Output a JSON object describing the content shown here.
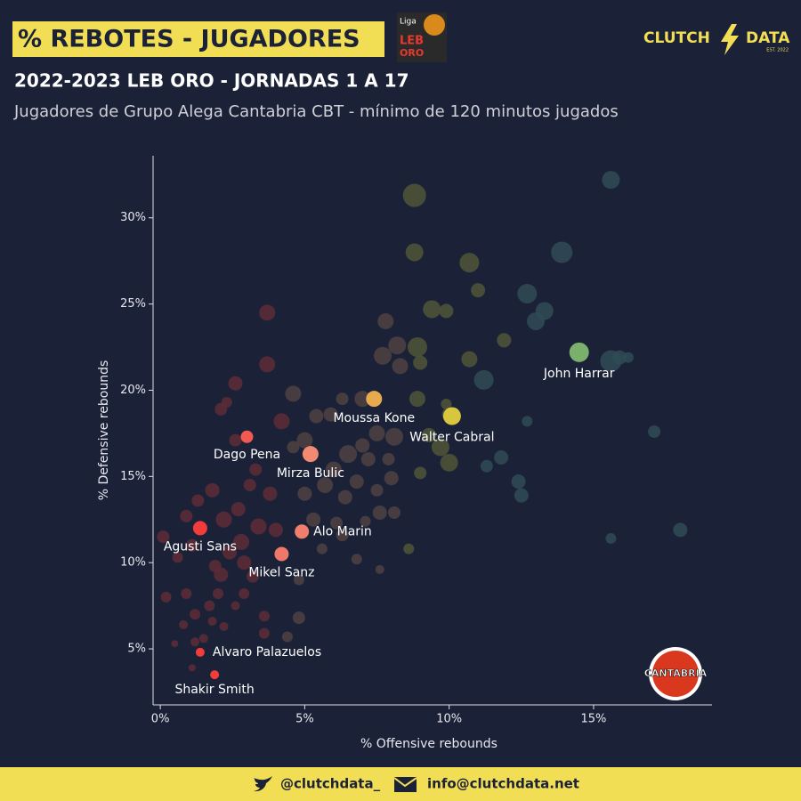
{
  "header": {
    "title": "% REBOTES - JUGADORES",
    "league_logo": [
      "Liga",
      "LEB",
      "ORO"
    ],
    "brand": [
      "CLUTCH",
      "DATA"
    ],
    "brand_est": "EST. 2022",
    "subtitle": "2022-2023 LEB ORO - JORNADAS 1 A 17",
    "description": "Jugadores de Grupo Alega Cantabria CBT - mínimo de 120 minutos jugados"
  },
  "team_logo": "CANTABRIA",
  "footer": {
    "twitter": "@clutchdata_",
    "email": "info@clutchdata.net"
  },
  "chart_data": {
    "type": "scatter",
    "x_label": "% Offensive rebounds",
    "y_label": "% Defensive rebounds",
    "xlim": [
      -0.25,
      19.1
    ],
    "ylim": [
      1.75,
      33.6
    ],
    "xticks": [
      {
        "value": 0,
        "label": "0%"
      },
      {
        "value": 5,
        "label": "5%"
      },
      {
        "value": 10,
        "label": "10%"
      },
      {
        "value": 15,
        "label": "15%"
      }
    ],
    "yticks": [
      {
        "value": 5,
        "label": "5%"
      },
      {
        "value": 10,
        "label": "10%"
      },
      {
        "value": 15,
        "label": "15%"
      },
      {
        "value": 20,
        "label": "20%"
      },
      {
        "value": 25,
        "label": "25%"
      },
      {
        "value": 30,
        "label": "30%"
      }
    ],
    "series": [
      {
        "color": "#2f4b56",
        "x": [
          15.6,
          13.9,
          12.7,
          13.3,
          13.0,
          15.6,
          15.9,
          16.2,
          17.1,
          18.0,
          15.6,
          12.4,
          12.5,
          11.8,
          11.3,
          12.7,
          11.2
        ],
        "y": [
          32.2,
          28.0,
          25.6,
          24.6,
          24.0,
          21.7,
          21.9,
          21.9,
          17.6,
          11.9,
          11.4,
          14.7,
          13.9,
          16.1,
          15.6,
          18.2,
          20.6
        ],
        "sizes": [
          10,
          12,
          11,
          10,
          10,
          12,
          8,
          6,
          7,
          8,
          6,
          8,
          8,
          8,
          7,
          6,
          11
        ]
      },
      {
        "color": "#4f5537",
        "x": [
          8.8,
          8.8,
          10.7,
          11.0,
          9.4,
          9.9,
          11.9,
          10.7,
          8.9,
          9.0,
          8.9,
          9.3,
          10.0,
          9.7,
          10.0,
          9.0,
          8.6,
          9.9
        ],
        "y": [
          31.3,
          28.0,
          27.4,
          25.8,
          24.7,
          24.6,
          22.9,
          21.8,
          22.5,
          21.6,
          19.5,
          17.4,
          18.6,
          16.7,
          15.8,
          15.2,
          10.8,
          19.2
        ],
        "sizes": [
          13,
          10,
          11,
          8,
          10,
          8,
          8,
          9,
          11,
          8,
          9,
          8,
          8,
          10,
          10,
          7,
          6,
          6
        ]
      },
      {
        "color": "#4f4142",
        "x": [
          7.8,
          8.2,
          7.7,
          8.3,
          6.3,
          7.0,
          5.9,
          5.4,
          7.5,
          8.1,
          7.0,
          7.2,
          6.5,
          6.8,
          7.5,
          8.0,
          7.9,
          7.1,
          6.1,
          7.6,
          8.1,
          6.8,
          7.6,
          5.6,
          6.4,
          5.7,
          6.0,
          6.3,
          5.0,
          4.6,
          5.0,
          4.6,
          5.3,
          4.8,
          4.4,
          4.8
        ],
        "y": [
          24.0,
          22.6,
          22.0,
          21.4,
          19.5,
          19.5,
          18.6,
          18.5,
          17.5,
          17.3,
          16.8,
          16.0,
          16.3,
          14.7,
          14.2,
          14.9,
          16.0,
          12.4,
          12.3,
          12.9,
          12.9,
          10.2,
          9.6,
          10.8,
          13.8,
          14.5,
          15.4,
          11.6,
          14.0,
          16.7,
          17.1,
          19.8,
          12.5,
          6.8,
          5.7,
          9.0
        ],
        "sizes": [
          9,
          10,
          10,
          9,
          7,
          9,
          8,
          8,
          9,
          10,
          8,
          8,
          10,
          8,
          7,
          8,
          7,
          6,
          7,
          8,
          7,
          6,
          5,
          6,
          8,
          9,
          9,
          7,
          8,
          7,
          9,
          9,
          8,
          7,
          6,
          6
        ]
      },
      {
        "color": "#5e2b37",
        "x": [
          3.7,
          3.7,
          2.6,
          2.1,
          2.3,
          4.2,
          2.6,
          3.3,
          3.8,
          3.1,
          2.7,
          1.8,
          1.3,
          0.9,
          0.1,
          1.1,
          0.6,
          2.2,
          2.4,
          2.8,
          3.4,
          4.0,
          1.9,
          2.1,
          2.9,
          3.2,
          2.0,
          2.9,
          0.9,
          0.2,
          1.7,
          2.6,
          1.2,
          0.8,
          1.8,
          3.6,
          1.5,
          3.6,
          0.5,
          1.2,
          1.1,
          2.2
        ],
        "y": [
          24.5,
          21.5,
          20.4,
          18.9,
          19.3,
          18.2,
          17.1,
          15.4,
          14.0,
          14.5,
          13.1,
          14.2,
          13.6,
          12.7,
          11.5,
          11.0,
          10.3,
          12.5,
          10.6,
          11.2,
          12.1,
          11.9,
          9.8,
          9.3,
          10.0,
          9.2,
          8.2,
          8.2,
          8.2,
          8.0,
          7.5,
          7.5,
          7.0,
          6.4,
          6.6,
          6.9,
          5.6,
          5.9,
          5.3,
          5.4,
          3.9,
          6.3
        ],
        "sizes": [
          9,
          9,
          8,
          7,
          6,
          9,
          7,
          7,
          8,
          7,
          8,
          8,
          7,
          7,
          7,
          7,
          6,
          9,
          8,
          9,
          9,
          8,
          7,
          8,
          8,
          7,
          6,
          6,
          6,
          6,
          6,
          5,
          6,
          5,
          5,
          6,
          5,
          6,
          4,
          5,
          4,
          5
        ]
      },
      {
        "labels": [
          "Agusti Sans",
          "Alvaro Palazuelos",
          "Shakir Smith",
          "Dago Pena",
          "Mirza Bulic",
          "Alo Marin",
          "Mikel Sanz",
          "Moussa Kone",
          "Walter Cabral",
          "John Harrar"
        ],
        "colors": [
          "#f23b3b",
          "#f23b3b",
          "#f23b3b",
          "#f05a52",
          "#f08a72",
          "#f07e6c",
          "#f07868",
          "#e8aa4e",
          "#d8c63e",
          "#7aaf6c"
        ],
        "x": [
          1.38,
          1.38,
          1.88,
          3.0,
          5.2,
          4.9,
          4.2,
          7.4,
          10.1,
          14.5
        ],
        "y": [
          12.0,
          4.8,
          3.5,
          17.3,
          16.3,
          11.8,
          10.5,
          19.5,
          18.5,
          22.2
        ],
        "sizes": [
          8,
          5,
          5,
          7,
          9,
          8,
          8,
          9,
          10,
          11
        ]
      }
    ]
  }
}
